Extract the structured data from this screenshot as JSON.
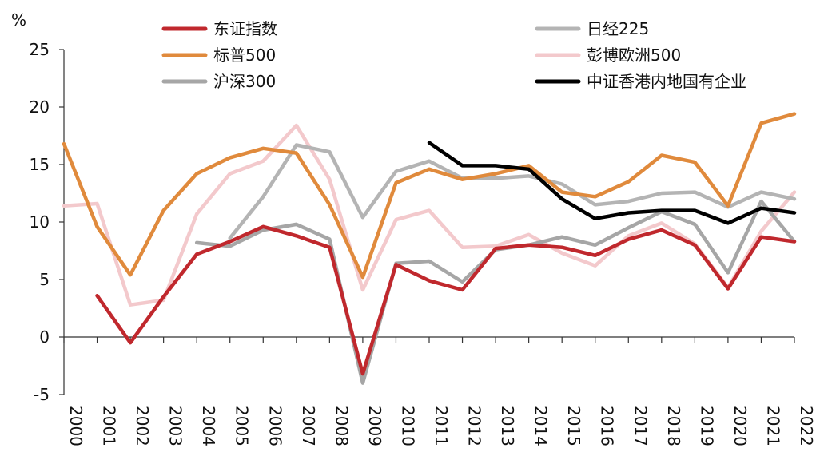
{
  "chart_data": {
    "type": "line",
    "ylabel": "%",
    "xlabel": "",
    "title": "",
    "ylim": [
      -5,
      25
    ],
    "yticks": [
      "-5",
      "0",
      "5",
      "10",
      "15",
      "20",
      "25"
    ],
    "categories": [
      "2000",
      "2001",
      "2002",
      "2003",
      "2004",
      "2005",
      "2006",
      "2007",
      "2008",
      "2009",
      "2010",
      "2011",
      "2012",
      "2013",
      "2014",
      "2015",
      "2016",
      "2017",
      "2018",
      "2019",
      "2020",
      "2021",
      "2022"
    ],
    "series": [
      {
        "name": "东证指数",
        "color": "#c0282d",
        "values": [
          null,
          3.6,
          -0.5,
          3.5,
          7.2,
          8.3,
          9.6,
          8.8,
          7.8,
          -3.2,
          6.3,
          4.9,
          4.1,
          7.7,
          8.0,
          7.8,
          7.1,
          8.5,
          9.3,
          8.0,
          4.2,
          8.7,
          8.3
        ]
      },
      {
        "name": "标普500",
        "color": "#e08a3c",
        "values": [
          16.8,
          9.6,
          5.4,
          11.0,
          14.2,
          15.6,
          16.4,
          16.0,
          11.5,
          5.2,
          13.4,
          14.6,
          13.7,
          14.2,
          14.9,
          12.6,
          12.2,
          13.5,
          15.8,
          15.2,
          11.4,
          18.6,
          19.4
        ]
      },
      {
        "name": "沪深300",
        "color": "#a6a6a6",
        "values": [
          null,
          null,
          null,
          null,
          8.2,
          7.9,
          9.3,
          9.8,
          8.5,
          -4.0,
          6.4,
          6.6,
          4.8,
          7.6,
          8.0,
          8.7,
          8.0,
          9.5,
          10.9,
          9.8,
          5.6,
          11.8,
          8.3
        ]
      },
      {
        "name": "日经225",
        "color": "#b4b4b4",
        "values": [
          null,
          null,
          null,
          null,
          null,
          8.6,
          12.2,
          16.7,
          16.1,
          10.4,
          14.4,
          15.3,
          13.8,
          13.8,
          14.0,
          13.3,
          11.5,
          11.8,
          12.5,
          12.6,
          11.3,
          12.6,
          12.0
        ]
      },
      {
        "name": "彭博欧洲500",
        "color": "#f3c9cc",
        "values": [
          11.4,
          11.6,
          2.8,
          3.2,
          10.7,
          14.2,
          15.3,
          18.4,
          13.7,
          4.1,
          10.2,
          11.0,
          7.8,
          7.9,
          8.9,
          7.3,
          6.2,
          8.8,
          9.9,
          8.1,
          4.3,
          9.2,
          12.6
        ]
      },
      {
        "name": "中证香港内地国有企业",
        "color": "#000000",
        "values": [
          null,
          null,
          null,
          null,
          null,
          null,
          null,
          null,
          null,
          null,
          null,
          16.9,
          14.9,
          14.9,
          14.6,
          12.0,
          10.3,
          10.8,
          11.0,
          11.0,
          9.9,
          11.2,
          10.8
        ]
      }
    ],
    "legend": [
      {
        "label": "东证指数",
        "color": "#c0282d"
      },
      {
        "label": "日经225",
        "color": "#b4b4b4"
      },
      {
        "label": "标普500",
        "color": "#e08a3c"
      },
      {
        "label": "彭博欧洲500",
        "color": "#f3c9cc"
      },
      {
        "label": "沪深300",
        "color": "#a6a6a6"
      },
      {
        "label": "中证香港内地国有企业",
        "color": "#000000"
      }
    ],
    "legend_position": "top",
    "grid": false
  }
}
